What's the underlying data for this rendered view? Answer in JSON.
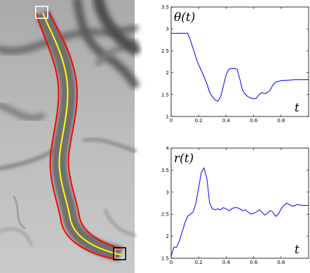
{
  "image_panel": {
    "description_icon": "grayscale-vessel-image",
    "centerline_color": "#ffff00",
    "boundary_color": "#ff0000",
    "marker_color": "#ffffff"
  },
  "chart_data": [
    {
      "type": "line",
      "title": "θ(t)",
      "xlabel": "t",
      "ylabel": "",
      "xlim": [
        0,
        1
      ],
      "ylim": [
        1,
        3.5
      ],
      "x_ticks": [
        "0",
        "0.2",
        "0.4",
        "0.6",
        "0.8"
      ],
      "y_ticks": [
        "1",
        "1.5",
        "2",
        "2.5",
        "3",
        "3.5"
      ],
      "grid": false,
      "series": [
        {
          "color": "#0000ff",
          "x": [
            0,
            0.02,
            0.05,
            0.08,
            0.1,
            0.12,
            0.14,
            0.16,
            0.18,
            0.2,
            0.22,
            0.24,
            0.26,
            0.28,
            0.3,
            0.32,
            0.34,
            0.36,
            0.38,
            0.4,
            0.42,
            0.44,
            0.46,
            0.48,
            0.5,
            0.52,
            0.54,
            0.56,
            0.58,
            0.6,
            0.62,
            0.64,
            0.66,
            0.68,
            0.7,
            0.72,
            0.74,
            0.76,
            0.78,
            0.8,
            0.85,
            0.9,
            0.95,
            1.0
          ],
          "y": [
            2.9,
            2.9,
            2.9,
            2.9,
            2.9,
            2.9,
            2.75,
            2.55,
            2.35,
            2.18,
            2.05,
            1.9,
            1.75,
            1.55,
            1.45,
            1.38,
            1.35,
            1.45,
            1.7,
            1.95,
            2.08,
            2.1,
            2.1,
            2.08,
            1.85,
            1.6,
            1.5,
            1.45,
            1.42,
            1.4,
            1.42,
            1.5,
            1.55,
            1.52,
            1.55,
            1.6,
            1.72,
            1.78,
            1.8,
            1.82,
            1.83,
            1.84,
            1.84,
            1.84
          ]
        }
      ]
    },
    {
      "type": "line",
      "title": "r(t)",
      "xlabel": "t",
      "ylabel": "",
      "xlim": [
        0,
        1
      ],
      "ylim": [
        1.5,
        4
      ],
      "x_ticks": [
        "0",
        "0.2",
        "0.4",
        "0.6",
        "0.8"
      ],
      "y_ticks": [
        "1.5",
        "2",
        "2.5",
        "3",
        "3.5",
        "4"
      ],
      "grid": false,
      "series": [
        {
          "color": "#0000ff",
          "x": [
            0,
            0.01,
            0.02,
            0.04,
            0.06,
            0.08,
            0.1,
            0.12,
            0.14,
            0.16,
            0.18,
            0.2,
            0.22,
            0.24,
            0.26,
            0.28,
            0.3,
            0.32,
            0.34,
            0.36,
            0.38,
            0.4,
            0.42,
            0.44,
            0.46,
            0.48,
            0.5,
            0.52,
            0.54,
            0.56,
            0.58,
            0.6,
            0.62,
            0.64,
            0.66,
            0.68,
            0.7,
            0.72,
            0.74,
            0.76,
            0.78,
            0.8,
            0.82,
            0.84,
            0.86,
            0.88,
            0.9,
            0.92,
            0.95,
            1.0
          ],
          "y": [
            1.55,
            1.65,
            1.75,
            1.75,
            1.9,
            2.1,
            2.3,
            2.45,
            2.5,
            2.55,
            2.75,
            3.1,
            3.45,
            3.55,
            3.3,
            2.75,
            2.62,
            2.6,
            2.62,
            2.6,
            2.65,
            2.62,
            2.58,
            2.62,
            2.65,
            2.65,
            2.62,
            2.58,
            2.6,
            2.55,
            2.5,
            2.52,
            2.55,
            2.6,
            2.55,
            2.48,
            2.52,
            2.58,
            2.55,
            2.45,
            2.5,
            2.62,
            2.7,
            2.75,
            2.72,
            2.68,
            2.7,
            2.72,
            2.7,
            2.7
          ]
        }
      ]
    }
  ]
}
